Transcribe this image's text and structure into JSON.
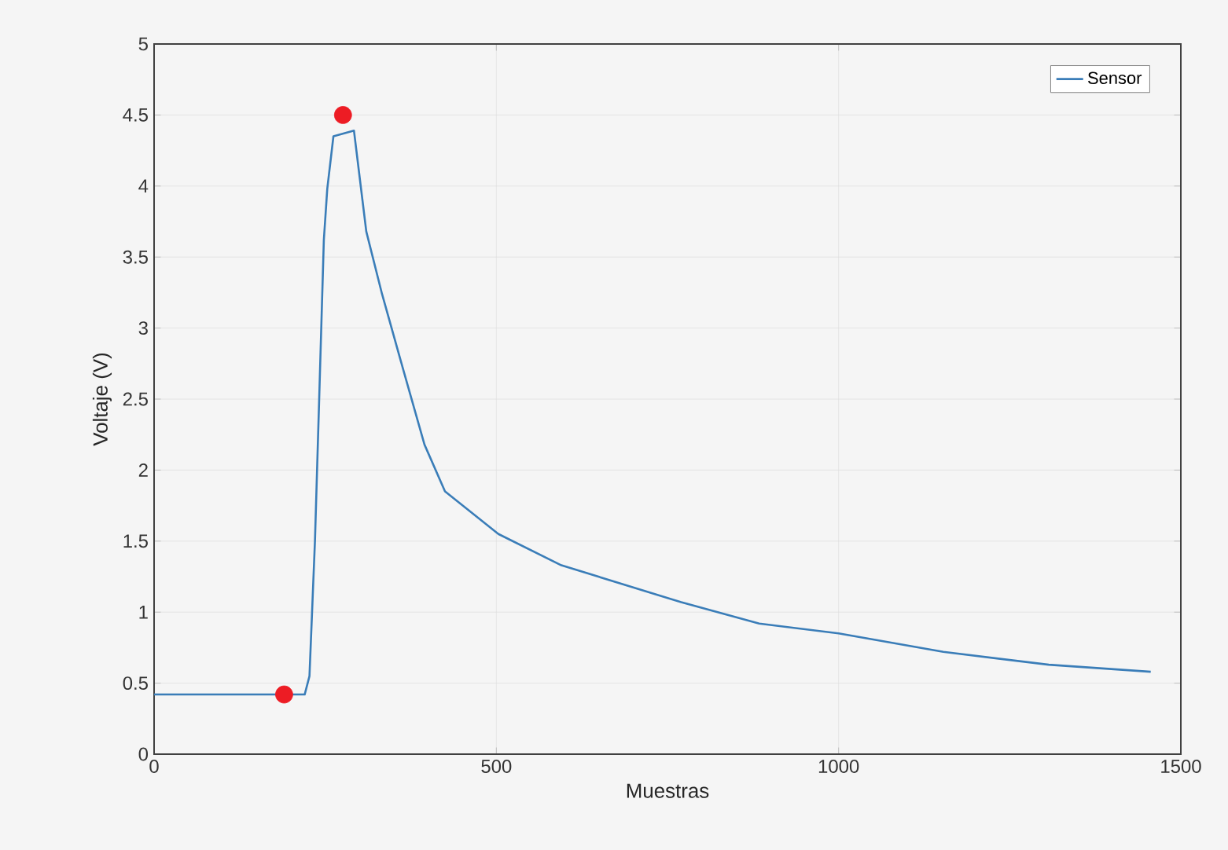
{
  "chart_data": {
    "type": "line",
    "xlabel": "Muestras",
    "ylabel": "Voltaje (V)",
    "xlim": [
      0,
      1500
    ],
    "ylim": [
      0,
      5
    ],
    "xticks": [
      0,
      500,
      1000,
      1500
    ],
    "yticks": [
      0,
      0.5,
      1,
      1.5,
      2,
      2.5,
      3,
      3.5,
      4,
      4.5,
      5
    ],
    "grid": true,
    "legend": "top right",
    "series": [
      {
        "name": "Sensor",
        "color": "#3a7db8",
        "x": [
          0,
          100,
          190,
          220,
          227,
          235,
          241,
          248,
          253,
          262,
          276,
          292,
          310,
          333,
          365,
          395,
          425,
          503,
          595,
          770,
          884,
          1000,
          1153,
          1307,
          1456
        ],
        "values": [
          0.42,
          0.42,
          null,
          0.42,
          0.55,
          1.5,
          2.47,
          3.62,
          3.98,
          4.35,
          null,
          4.39,
          3.68,
          3.24,
          2.69,
          2.18,
          1.85,
          1.55,
          1.33,
          1.07,
          0.92,
          0.85,
          0.72,
          0.63,
          0.58
        ]
      },
      {
        "type": "scatter",
        "marker": "circle",
        "color": "#ed1c24",
        "x": [
          190,
          276
        ],
        "values": [
          0.42,
          4.5
        ]
      }
    ]
  }
}
